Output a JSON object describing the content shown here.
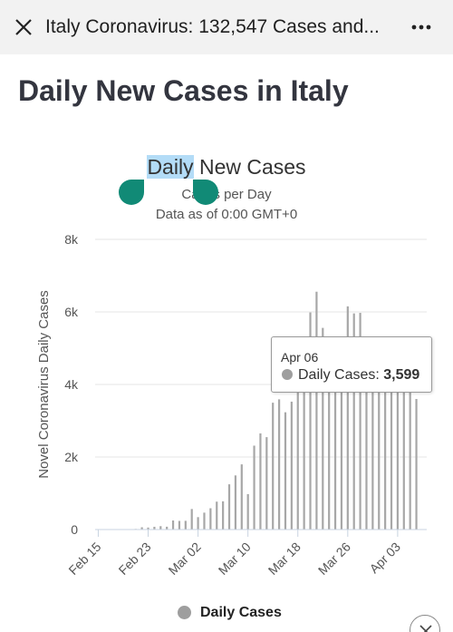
{
  "toolbar": {
    "title": "Italy Coronavirus: 132,547 Cases and...",
    "close_icon": "close-icon",
    "menu_icon": "more-vertical-icon"
  },
  "page": {
    "heading": "Daily New Cases in Italy"
  },
  "selection": {
    "selected_text": "Daily",
    "handle_color": "#118a76",
    "highlight_color": "#b3dcf7"
  },
  "chart_header": {
    "title_selected": "Daily",
    "title_rest": " New Cases",
    "subtitle": "Cases per Day",
    "subtitle2": "Data as of 0:00 GMT+0"
  },
  "tooltip": {
    "date": "Apr 06",
    "series": "Daily Cases:",
    "value": "3,599"
  },
  "legend": {
    "label": "Daily Cases",
    "color": "#9e9e9e"
  },
  "chart_data": {
    "type": "bar",
    "title": "Daily New Cases",
    "subtitle": "Cases per Day",
    "ylabel": "Novel Coronavirus Daily Cases",
    "xlabel": "",
    "ylim": [
      0,
      8000
    ],
    "yticks": [
      0,
      2000,
      4000,
      6000,
      8000
    ],
    "ytick_labels": [
      "0",
      "2k",
      "4k",
      "6k",
      "8k"
    ],
    "xtick_labels": [
      "Feb 15",
      "Feb 23",
      "Mar 02",
      "Mar 10",
      "Mar 18",
      "Mar 26",
      "Apr 03"
    ],
    "grid": true,
    "legend_position": "bottom",
    "bar_color": "#a7a7a7",
    "categories": [
      "Feb 15",
      "Feb 16",
      "Feb 17",
      "Feb 18",
      "Feb 19",
      "Feb 20",
      "Feb 21",
      "Feb 22",
      "Feb 23",
      "Feb 24",
      "Feb 25",
      "Feb 26",
      "Feb 27",
      "Feb 28",
      "Feb 29",
      "Mar 01",
      "Mar 02",
      "Mar 03",
      "Mar 04",
      "Mar 05",
      "Mar 06",
      "Mar 07",
      "Mar 08",
      "Mar 09",
      "Mar 10",
      "Mar 11",
      "Mar 12",
      "Mar 13",
      "Mar 14",
      "Mar 15",
      "Mar 16",
      "Mar 17",
      "Mar 18",
      "Mar 19",
      "Mar 20",
      "Mar 21",
      "Mar 22",
      "Mar 23",
      "Mar 24",
      "Mar 25",
      "Mar 26",
      "Mar 27",
      "Mar 28",
      "Mar 29",
      "Mar 30",
      "Mar 31",
      "Apr 01",
      "Apr 02",
      "Apr 03",
      "Apr 04",
      "Apr 05",
      "Apr 06"
    ],
    "series": [
      {
        "name": "Daily Cases",
        "values": [
          0,
          0,
          0,
          0,
          0,
          0,
          17,
          62,
          55,
          76,
          93,
          78,
          250,
          238,
          240,
          566,
          342,
          466,
          587,
          769,
          778,
          1247,
          1492,
          1797,
          977,
          2313,
          2651,
          2547,
          3497,
          3590,
          3233,
          3526,
          4207,
          5322,
          5986,
          6557,
          5560,
          4789,
          5249,
          5210,
          6153,
          5959,
          5974,
          5217,
          4050,
          4053,
          4782,
          4668,
          4585,
          4805,
          4316,
          3599
        ]
      }
    ]
  }
}
